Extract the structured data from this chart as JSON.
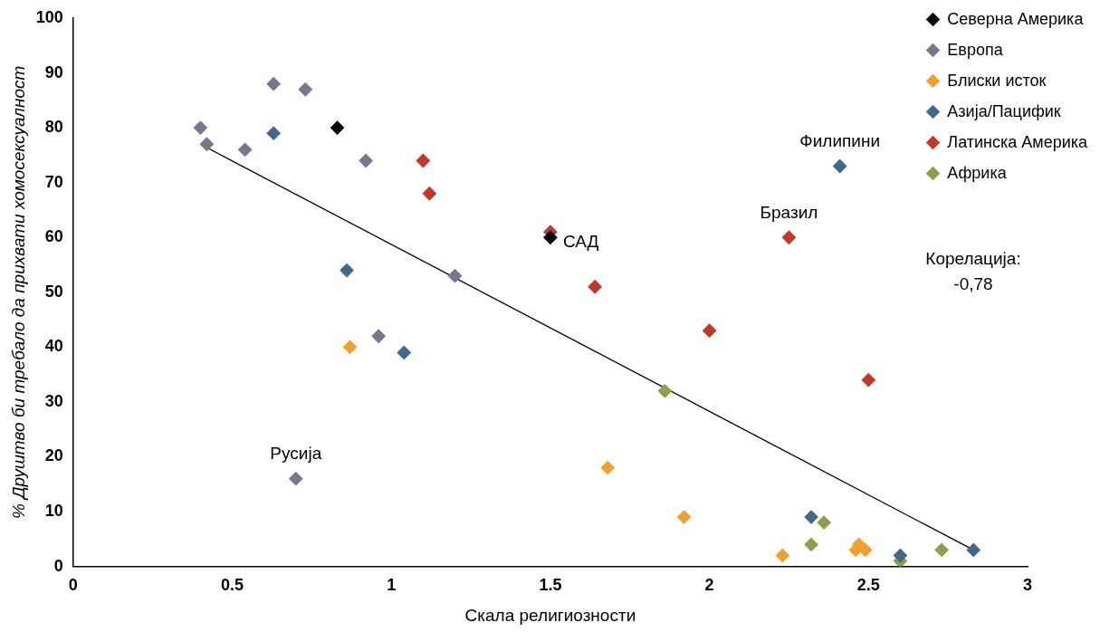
{
  "chart_data": {
    "type": "scatter",
    "xlabel": "Скала религиозности",
    "ylabel": "% Друштво би требало да прихвати хомосексуалност",
    "xlim": [
      0,
      3
    ],
    "xticks": [
      0,
      0.5,
      1,
      1.5,
      2,
      2.5,
      3
    ],
    "ylim": [
      0,
      100
    ],
    "yticks": [
      0,
      10,
      20,
      30,
      40,
      50,
      60,
      70,
      80,
      90,
      100
    ],
    "grid": false,
    "legend": "top right",
    "marker": "diamond",
    "series": [
      {
        "name": "Северна Америка",
        "color": "#000000",
        "x": [
          0.83,
          1.5
        ],
        "values": [
          80,
          60
        ]
      },
      {
        "name": "Европа",
        "color": "#7f7390",
        "x": [
          0.4,
          0.42,
          0.54,
          0.63,
          0.73,
          0.92,
          1.2,
          0.96,
          0.7
        ],
        "values": [
          80,
          77,
          76,
          88,
          87,
          74,
          53,
          42,
          16
        ]
      },
      {
        "name": "Блиски исток",
        "color": "#f0a030",
        "x": [
          0.87,
          1.68,
          1.92,
          2.23,
          2.46,
          2.47,
          2.49
        ],
        "values": [
          40,
          18,
          9,
          2,
          3,
          4,
          3
        ]
      },
      {
        "name": "Азија/Пацифик",
        "color": "#42688c",
        "x": [
          0.63,
          0.86,
          1.04,
          2.41,
          2.32,
          2.6,
          2.83
        ],
        "values": [
          79,
          54,
          39,
          73,
          9,
          2,
          3
        ]
      },
      {
        "name": "Латинска Америка",
        "color": "#c0392b",
        "x": [
          1.1,
          1.12,
          1.5,
          1.64,
          2.0,
          2.25,
          2.5
        ],
        "values": [
          74,
          68,
          61,
          51,
          43,
          60,
          34
        ]
      },
      {
        "name": "Африка",
        "color": "#8e9e4a",
        "x": [
          1.86,
          2.36,
          2.32,
          2.6,
          2.73
        ],
        "values": [
          32,
          8,
          4,
          1,
          3
        ]
      },
      {
        "type": "line",
        "color": "#000000",
        "x": [
          0.4,
          2.83
        ],
        "values": [
          77,
          3
        ],
        "marker": "none"
      }
    ],
    "annotations": [
      {
        "text": "Русија",
        "x": 0.7,
        "y": 16
      },
      {
        "text": "САД",
        "x": 1.5,
        "y": 60
      },
      {
        "text": "Бразил",
        "x": 2.25,
        "y": 60
      },
      {
        "text": "Филипини",
        "x": 2.41,
        "y": 73
      },
      "Корелација: -0,78"
    ]
  }
}
